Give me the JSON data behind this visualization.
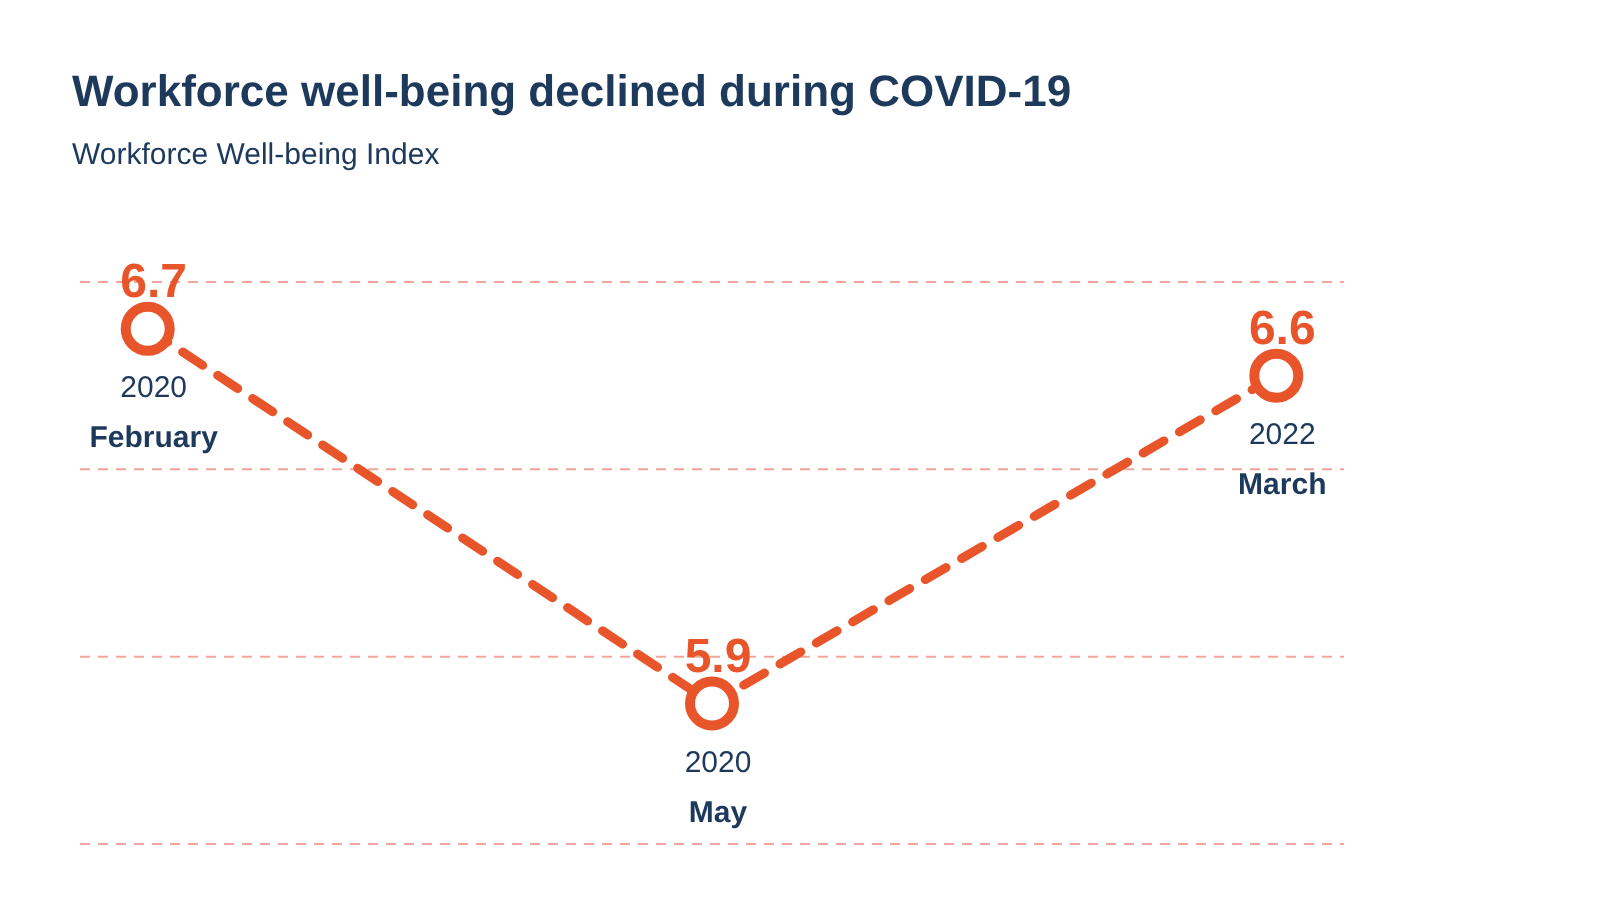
{
  "chart_data": {
    "type": "line",
    "title": "Workforce well-being declined during COVID-19",
    "subtitle": "Workforce Well-being Index",
    "categories": [
      "2020\nFebruary",
      "2020\nMay",
      "2022\nMarch"
    ],
    "series": [
      {
        "color": "#e8552b",
        "values": [
          6.7,
          5.9,
          6.6
        ]
      }
    ],
    "ylim": [
      5.6,
      6.8
    ],
    "yticks": [
      {
        "value": 6.8,
        "label": null
      },
      {
        "value": 6.4,
        "label": null
      },
      {
        "value": 6.0,
        "label": null
      },
      {
        "value": 5.6,
        "label": null
      }
    ],
    "grid": "y",
    "data_labels": true,
    "marker": "circle",
    "line_style": "dashed"
  }
}
